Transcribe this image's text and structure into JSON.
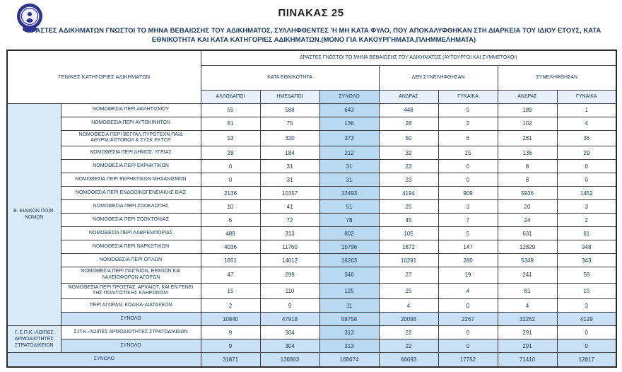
{
  "page": {
    "title": "ΠΙΝΑΚΑΣ 25",
    "subtitle": "ΔΡΑΣΤΕΣ ΑΔΙΚΗΜΑΤΩΝ ΓΝΩΣΤΟΙ ΤΟ ΜΗΝΑ ΒΕΒΑΙΩΣΗΣ ΤΟΥ ΑΔΙΚΗΜΑΤΟΣ, ΣΥΛΛΗΦΘΕΝΤΕΣ 'Η ΜΗ ΚΑΤΑ ΦΥΛΟ, ΠΟΥ ΑΠΟΚΑΛΥΦΘΗΚΑΝ ΣΤΗ ΔΙΑΡΚΕΙΑ ΤΟΥ ΙΔΙΟΥ ΕΤΟΥΣ, ΚΑΤΑ ΕΘΝΙΚΟΤΗΤΑ  ΚΑΙ ΚΑΤΑ ΚΑΤΗΓΟΡΙΕΣ ΑΔΙΚΗΜΑΤΩΝ.(ΜΟΝΟ ΓΙΑ ΚΑΚΟΥΡΓΗΜΑΤΑ,ΠΛΗΜΜΕΛΗΜΑΤΑ)",
    "logo": "hellenic-police-emblem"
  },
  "colors": {
    "total_column_blue": "#b9d8f1",
    "subtotal_row_blue": "#c9e0f5",
    "group_cell_blue": "#dcebf8",
    "header_tint_blue": "#e8f1fb",
    "text_navy": "#17375e",
    "emblem_navy": "#2e3192"
  },
  "table": {
    "header": {
      "col_categories": "ΓΕΝΙΚΕΣ ΚΑΤΗΓΟΡΙΕΣ ΑΔΙΚΗΜΑΤΩΝ",
      "span_top": "ΔΡΑΣΤΕΣ ΓΝΩΣΤΟΙ ΤΟ ΜΗΝΑ ΒΕΒΑΙΩΣΗΣ ΤΟΥ ΑΔΙΚΗΜΑΤΟΣ (ΑΥΤΟΥΡΓΟΙ ΚΑΙ ΣΥΜΜΕΤΟΧΟΙ)",
      "group_nationality": "ΚΑΤΑ ΕΘΝΙΚΟΤΗΤΑ",
      "group_not_arrested": "ΔΕΝ ΣΥΝΕΛΗΦΘΗΣΑΝ",
      "group_arrested": "ΣΥΝΕΛΗΦΘΗΣΑΝ",
      "columns": [
        "ΑΛΛΟΔΑΠΟΙ",
        "ΗΜΕΔΑΠΟΙ",
        "ΣΥΝΟΛΟ",
        "ΑΝΔΡΑΣ",
        "ΓΥΝΑΙΚΑ",
        "ΑΝΔΡΑΣ",
        "ΓΥΝΑΙΚΑ"
      ]
    },
    "groups": [
      {
        "label": "Β. ΕΙΔΙΚΩΝ ΠΟΙΝ. ΝΟΜΩΝ",
        "rows": [
          {
            "label": "ΝΟΜΟΘΕΣΙΑ ΠΕΡΙ ΑΘΛΗΤΙΣΜΟΥ",
            "values": [
              55,
              588,
              643,
              448,
              5,
              189,
              1
            ]
          },
          {
            "label": "ΝΟΜΟΘΕΣΙΑ ΠΕΡΙ ΑΥΤΟΚΙΝΗΤΩΝ",
            "values": [
              61,
              75,
              136,
              28,
              2,
              102,
              4
            ]
          },
          {
            "label": "ΝΟΜΟΘΕΣΙΑ ΠΕΡΙ ΒΕΓΓΑΛ,ΠΥΡΟΤΕΧΝ,ΠΑΙΔ ΑΘΥΡΜ,ΦΩΤΟΒΟΛ & ΣΥΣΚ ΕΚΤΟΞ",
            "values": [
              53,
              320,
              373,
              50,
              6,
              281,
              36
            ]
          },
          {
            "label": "ΝΟΜΟΘΕΣΙΑ ΠΕΡΙ ΔΗΜΟΣ. ΥΓΕΙΑΣ",
            "values": [
              28,
              184,
              212,
              32,
              15,
              136,
              29
            ]
          },
          {
            "label": "ΝΟΜΟΘΕΣΙΑ ΠΕΡΙ ΕΚΡΗΚΤΙΚΩΝ",
            "values": [
              0,
              31,
              31,
              23,
              0,
              8,
              0
            ]
          },
          {
            "label": "ΝΟΜΟΘΕΣΙΑ ΠΕΡΙ ΕΚΡΗΚΤΙΚΩΝ ΜΗΧΑΝΙΣΜΩΝ",
            "values": [
              0,
              31,
              31,
              23,
              0,
              8,
              0
            ]
          },
          {
            "label": "ΝΟΜΟΘΕΣΙΑ ΠΕΡΙ ΕΝΔΟΟΙΚΟΓΕΝΕΙΑΚΗΣ ΒΙΑΣ",
            "values": [
              2136,
              10357,
              12493,
              4194,
              909,
              5936,
              1452
            ]
          },
          {
            "label": "ΝΟΜΟΘΕΣΙΑ ΠΕΡΙ ΖΩΟΚΛΟΠΗΣ",
            "values": [
              10,
              41,
              51,
              25,
              3,
              20,
              3
            ]
          },
          {
            "label": "ΝΟΜΟΘΕΣΙΑ ΠΕΡΙ ΖΩΟΚΤΟΝΙΑΣ",
            "values": [
              6,
              72,
              78,
              45,
              7,
              24,
              2
            ]
          },
          {
            "label": "ΝΟΜΟΘΕΣΙΑ ΠΕΡΙ ΛΑΘΡΕΜΠΟΡΙΑΣ",
            "values": [
              489,
              313,
              802,
              105,
              5,
              631,
              61
            ]
          },
          {
            "label": "ΝΟΜΟΘΕΣΙΑ ΠΕΡΙ ΝΑΡΚΩΤΙΚΩΝ",
            "values": [
              4036,
              11760,
              15796,
              1872,
              147,
              12829,
              948
            ]
          },
          {
            "label": "ΝΟΜΟΘΕΣΙΑ ΠΕΡΙ ΟΠΛΩΝ",
            "values": [
              1651,
              14612,
              16263,
              10291,
              280,
              5349,
              343
            ]
          },
          {
            "label": "ΝΟΜΟΘΕΣΙΑ ΠΕΡΙ ΠΑΙΓΝΙΩΝ, ΕΡΑΝΩΝ ΚΑΙ ΛΑΧΕΙΟΦΟΡΩΝ ΑΓΟΡΩΝ",
            "values": [
              47,
              299,
              346,
              27,
              19,
              241,
              59
            ]
          },
          {
            "label": "ΝΟΜΟΘΕΣΙΑ ΠΕΡΙ ΠΡΟΣΤΑΣ. ΑΡΧΑΙΟΤ. ΚΑΙ ΕΝ ΓΕΝΕΙ ΤΗΣ ΠΟΛΙΤΙΣΤΙΚΗΣ ΚΛΗΡΟΝΟΜ.",
            "values": [
              15,
              110,
              125,
              25,
              4,
              81,
              15
            ]
          },
          {
            "label": "ΠΕΡΙ ΑΓΟΡΑΝ. ΚΩΔΙΚΑ-ΔΙΑΤΑΞΕΩΝ",
            "values": [
              2,
              9,
              11,
              4,
              0,
              4,
              3
            ]
          }
        ],
        "subtotal": {
          "label": "ΣΥΝΟΛΟ",
          "values": [
            10840,
            47918,
            58758,
            20098,
            2267,
            32262,
            4129
          ]
        }
      },
      {
        "label": "Γ. Σ.Π.Κ.-ΛΟΙΠΕΣ ΑΡΜΟΔΙΟΤΗΤΕΣ ΣΤΡΑΤΟΔΙΚΕΙΩΝ",
        "rows": [
          {
            "label": "Σ.Π.Κ.-ΛΟΙΠΕΣ ΑΡΜΟΔΙΟΤΗΤΕΣ ΣΤΡΑΤΟΔΙΚΕΙΩΝ",
            "values": [
              9,
              304,
              313,
              22,
              0,
              291,
              0
            ]
          }
        ],
        "subtotal": {
          "label": "ΣΥΝΟΛΟ",
          "values": [
            9,
            304,
            313,
            22,
            0,
            291,
            0
          ]
        }
      }
    ],
    "grand_total": {
      "label": "ΣΥΝΟΛΟ",
      "values": [
        31871,
        136803,
        168674,
        66693,
        17752,
        71410,
        12817
      ]
    }
  }
}
